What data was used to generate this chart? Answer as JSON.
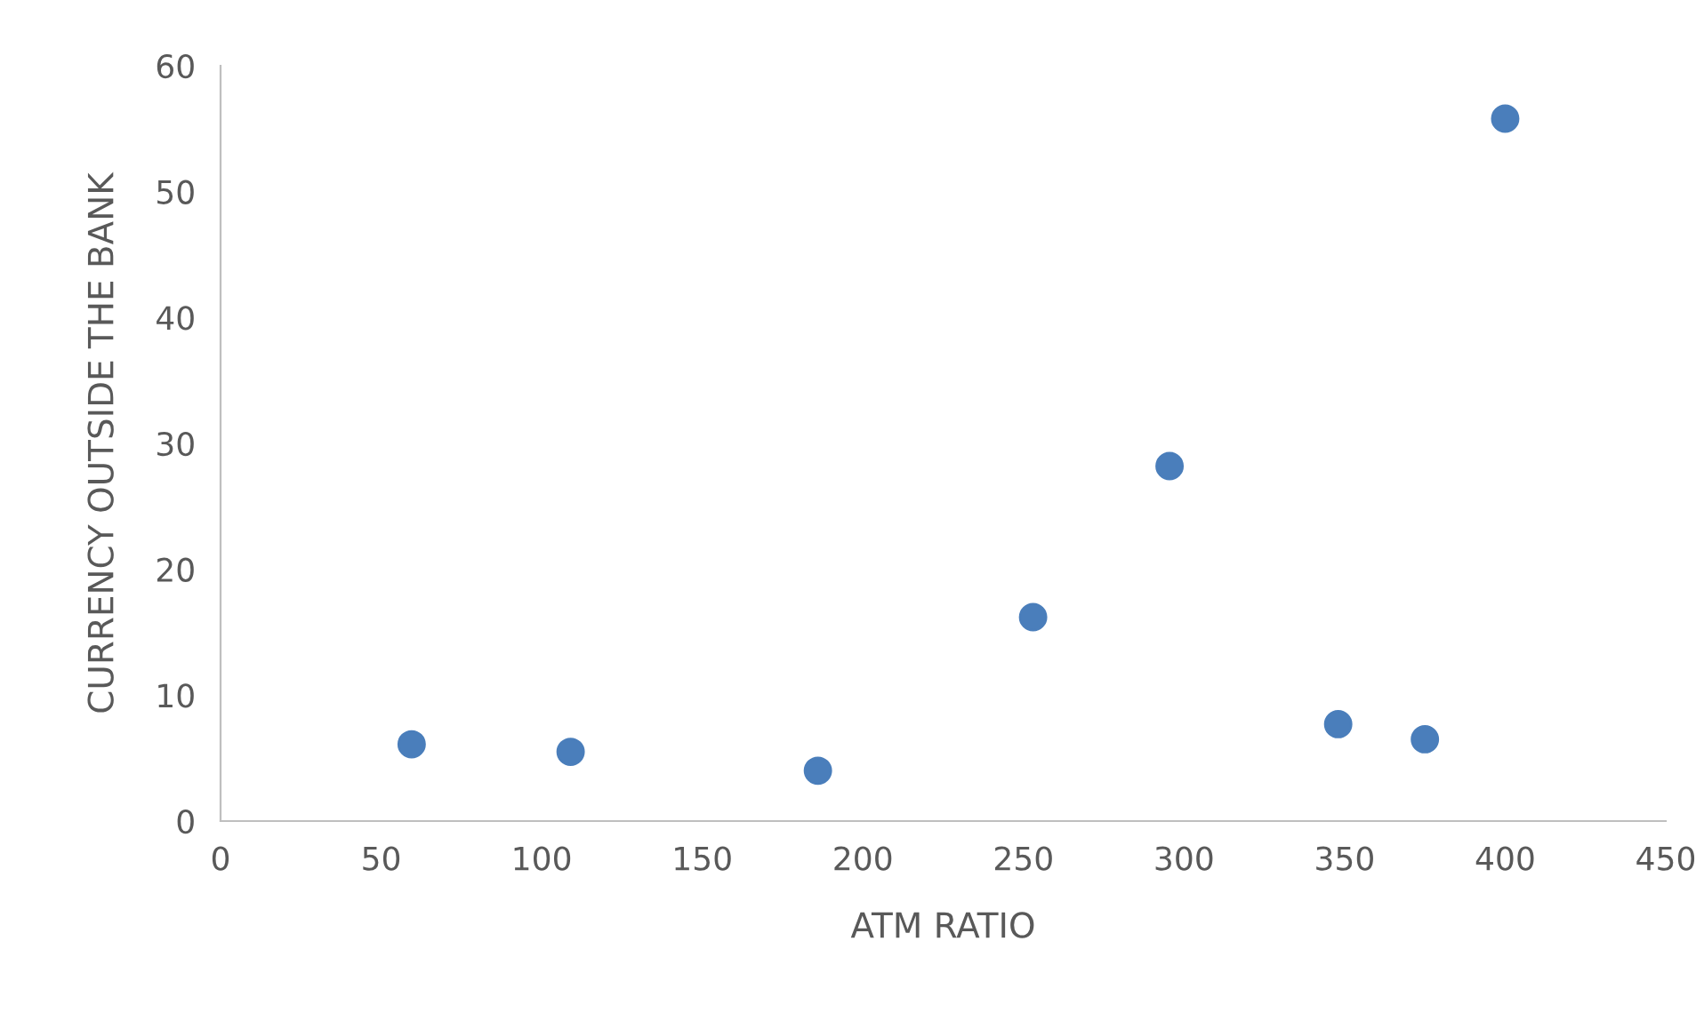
{
  "chart_data": {
    "type": "scatter",
    "xlabel": "ATM RATIO",
    "ylabel": "CURRENCY OUTSIDE THE BANK",
    "x": [
      59.5,
      109,
      186,
      253,
      295.5,
      348,
      375,
      400
    ],
    "series": [
      {
        "color": "#4a7ebb",
        "values": [
          6.1,
          5.5,
          4.0,
          16.2,
          28.2,
          7.7,
          6.5,
          55.8
        ]
      }
    ],
    "xlim": [
      0,
      450
    ],
    "xticks": [
      0,
      50,
      100,
      150,
      200,
      250,
      300,
      350,
      400,
      450
    ],
    "ylim": [
      0,
      60
    ],
    "yticks": [
      0,
      10,
      20,
      30,
      40,
      50,
      60
    ],
    "marker": "circle",
    "grid": false,
    "legend": false
  }
}
